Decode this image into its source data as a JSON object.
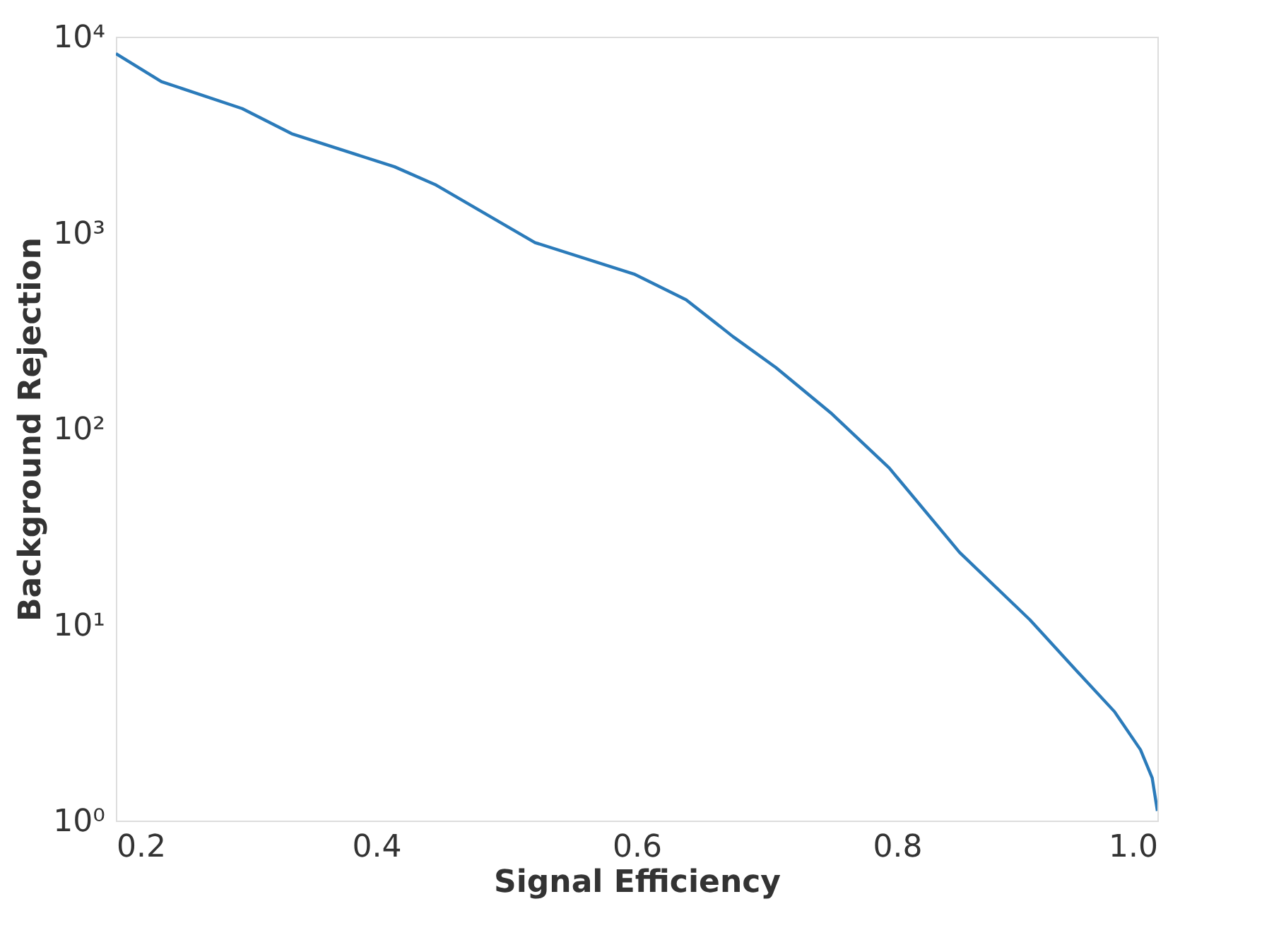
{
  "chart_data": {
    "type": "line",
    "xlabel": "Signal Efficiency",
    "ylabel": "Background Rejection",
    "log": "y",
    "grid": false,
    "marker": "none",
    "line_style": "solid",
    "xlim": [
      0.2,
      1.0
    ],
    "xticks": [
      {
        "value": 0.2,
        "label": "0.2"
      },
      {
        "value": 0.4,
        "label": "0.4"
      },
      {
        "value": 0.6,
        "label": "0.6"
      },
      {
        "value": 0.8,
        "label": "0.8"
      },
      {
        "value": 1.0,
        "label": "1.0"
      }
    ],
    "ylim": [
      1,
      10000
    ],
    "yticks": [
      {
        "value": 1,
        "label": "10⁰"
      },
      {
        "value": 10,
        "label": "10¹"
      },
      {
        "value": 100,
        "label": "10²"
      },
      {
        "value": 1000,
        "label": "10³"
      },
      {
        "value": 10000,
        "label": "10⁴"
      }
    ],
    "series": [
      {
        "color": "#2b7bba",
        "x": [
          0.2,
          0.235,
          0.297,
          0.335,
          0.414,
          0.446,
          0.522,
          0.598,
          0.638,
          0.674,
          0.707,
          0.75,
          0.794,
          0.848,
          0.902,
          0.935,
          0.967,
          0.987,
          0.996,
          1.0
        ],
        "values": [
          8200,
          5900,
          4300,
          3200,
          2170,
          1750,
          890,
          615,
          455,
          295,
          205,
          119,
          63,
          23.4,
          10.6,
          6.1,
          3.6,
          2.3,
          1.65,
          1.12
        ]
      }
    ]
  }
}
